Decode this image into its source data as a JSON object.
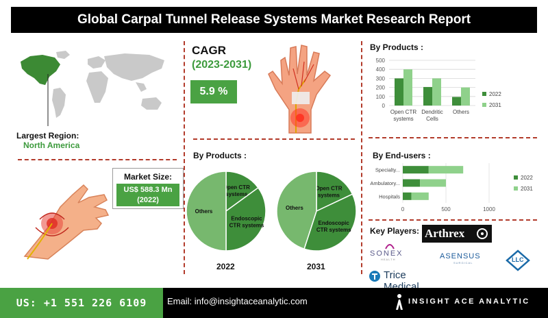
{
  "title": "Global Carpal Tunnel Release Systems Market Research Report",
  "region": {
    "label": "Largest Region:",
    "value": "North America"
  },
  "market_size": {
    "label": "Market Size:",
    "value_line1": "US$ 588.3 Mn",
    "value_line2": "(2022)"
  },
  "cagr": {
    "title": "CAGR",
    "years": "(2023-2031)",
    "value": "5.9 %"
  },
  "pies_title": "By Products :",
  "bar_title": "By Products :",
  "enduser_title": "By End-users :",
  "key_players": {
    "title": "Key Players:",
    "logos": [
      "Arthrex",
      "SONEX",
      "ASENSUS",
      "LLC",
      "Trice Medical"
    ],
    "sonex_sub": "HEALTH",
    "asensus_sub": "SURGICAL"
  },
  "colors": {
    "dark_green": "#3e8e3a",
    "light_green": "#8fd18b",
    "accent_green": "#4aa243",
    "pie_light": "#77b86e",
    "red_dash": "#b23a2a"
  },
  "chart_data": [
    {
      "type": "pie",
      "title": "2022",
      "labels": [
        "Open CTR systems",
        "Endoscopic CTR systems",
        "Others"
      ],
      "values": [
        15,
        35,
        50
      ]
    },
    {
      "type": "pie",
      "title": "2031",
      "labels": [
        "Open CTR systems",
        "Endoscopic CTR systems",
        "Others"
      ],
      "values": [
        18,
        37,
        45
      ]
    },
    {
      "type": "bar",
      "categories": [
        "Open CTR systems",
        "Dendritic Cells",
        "Others"
      ],
      "series": [
        {
          "name": "2022",
          "values": [
            300,
            205,
            95
          ]
        },
        {
          "name": "2031",
          "values": [
            400,
            300,
            200
          ]
        }
      ],
      "ylim": [
        0,
        500
      ],
      "yticks": [
        0,
        100,
        200,
        300,
        400,
        500
      ]
    },
    {
      "type": "bar",
      "orientation": "horizontal",
      "stacked": true,
      "categories": [
        "Specialty...",
        "Ambulatory...",
        "Hospitals"
      ],
      "series": [
        {
          "name": "2022",
          "values": [
            300,
            200,
            100
          ]
        },
        {
          "name": "2031",
          "values": [
            400,
            300,
            200
          ]
        }
      ],
      "xlim": [
        0,
        1000
      ],
      "xticks": [
        0,
        500,
        1000
      ]
    }
  ],
  "footer": {
    "phone": "US: +1 551 226 6109",
    "email": "Email: info@insightaceanalytic.com",
    "brand": "INSIGHT ACE ANALYTIC"
  }
}
